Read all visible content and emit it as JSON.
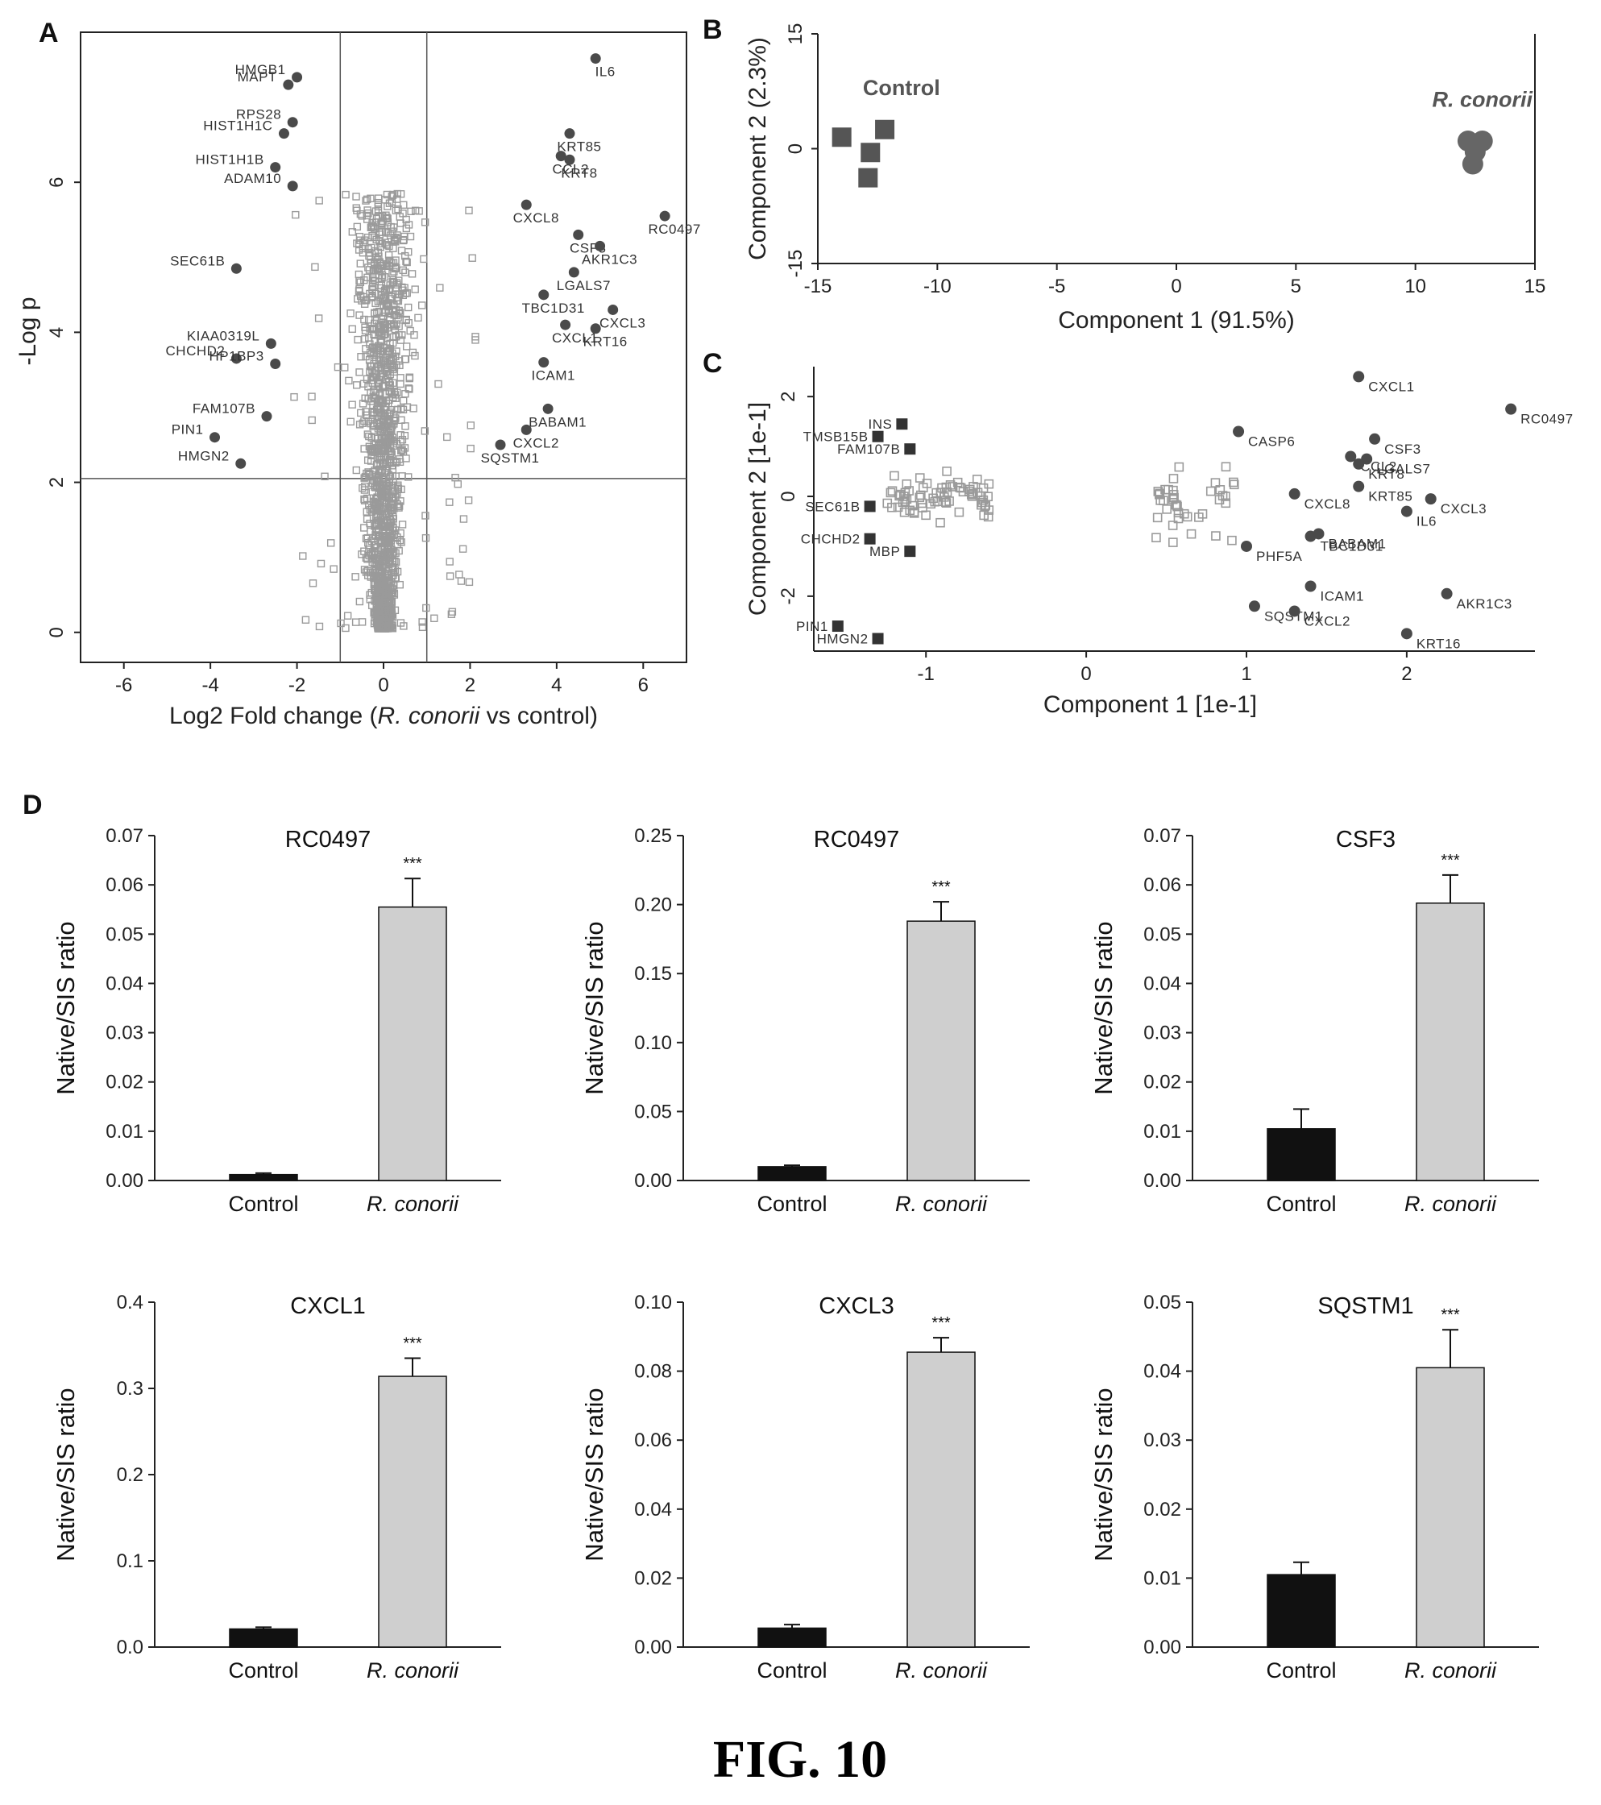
{
  "figure_caption": "FIG. 10",
  "colors": {
    "sig_point": "#4a4a4a",
    "nonsig_point": "#9a9a9a",
    "control_bar": "#111111",
    "treated_bar": "#cfcfcf",
    "treated_cluster": "#666666",
    "control_cluster": "#555555"
  },
  "chart_data": [
    {
      "panel": "A",
      "type": "scatter",
      "xlabel_prefix": "Log2 Fold change (",
      "xlabel_italic": "R. conorii",
      "xlabel_suffix": " vs control)",
      "ylabel": "-Log p",
      "xlim": [
        -7,
        7
      ],
      "ylim": [
        -0.4,
        8
      ],
      "xticks": [
        -6,
        -4,
        -2,
        0,
        2,
        4,
        6
      ],
      "yticks": [
        0,
        2,
        4,
        6
      ],
      "threshold_x": [
        -1,
        1
      ],
      "threshold_y": 2.05,
      "labeled_points": [
        {
          "gene": "HMGB1",
          "x": -2.0,
          "y": 7.4
        },
        {
          "gene": "MAPT",
          "x": -2.2,
          "y": 7.3
        },
        {
          "gene": "RPS28",
          "x": -2.1,
          "y": 6.8
        },
        {
          "gene": "HIST1H1C",
          "x": -2.3,
          "y": 6.65
        },
        {
          "gene": "HIST1H1B",
          "x": -2.5,
          "y": 6.2
        },
        {
          "gene": "ADAM10",
          "x": -2.1,
          "y": 5.95
        },
        {
          "gene": "SEC61B",
          "x": -3.4,
          "y": 4.85
        },
        {
          "gene": "KIAA0319L",
          "x": -2.6,
          "y": 3.85
        },
        {
          "gene": "CHCHD2",
          "x": -3.4,
          "y": 3.65
        },
        {
          "gene": "HP1BP3",
          "x": -2.5,
          "y": 3.58
        },
        {
          "gene": "FAM107B",
          "x": -2.7,
          "y": 2.88
        },
        {
          "gene": "PIN1",
          "x": -3.9,
          "y": 2.6
        },
        {
          "gene": "HMGN2",
          "x": -3.3,
          "y": 2.25
        },
        {
          "gene": "IL6",
          "x": 4.9,
          "y": 7.65
        },
        {
          "gene": "KRT85",
          "x": 4.3,
          "y": 6.65
        },
        {
          "gene": "CCL2",
          "x": 4.1,
          "y": 6.35
        },
        {
          "gene": "KRT8",
          "x": 4.3,
          "y": 6.3
        },
        {
          "gene": "CXCL8",
          "x": 3.3,
          "y": 5.7
        },
        {
          "gene": "RC0497",
          "x": 6.5,
          "y": 5.55
        },
        {
          "gene": "CSF3",
          "x": 4.5,
          "y": 5.3
        },
        {
          "gene": "AKR1C3",
          "x": 5.0,
          "y": 5.15
        },
        {
          "gene": "LGALS7",
          "x": 4.4,
          "y": 4.8
        },
        {
          "gene": "TBC1D31",
          "x": 3.7,
          "y": 4.5
        },
        {
          "gene": "CXCL3",
          "x": 5.3,
          "y": 4.3
        },
        {
          "gene": "CXCL1",
          "x": 4.2,
          "y": 4.1
        },
        {
          "gene": "KRT16",
          "x": 4.9,
          "y": 4.05
        },
        {
          "gene": "ICAM1",
          "x": 3.7,
          "y": 3.6
        },
        {
          "gene": "BABAM1",
          "x": 3.8,
          "y": 2.98
        },
        {
          "gene": "CXCL2",
          "x": 3.3,
          "y": 2.7
        },
        {
          "gene": "SQSTM1",
          "x": 2.7,
          "y": 2.5
        }
      ]
    },
    {
      "panel": "B",
      "type": "scatter",
      "xlabel": "Component 1 (91.5%)",
      "ylabel": "Component 2 (2.3%)",
      "xlim": [
        -15,
        15
      ],
      "ylim": [
        -15,
        15
      ],
      "xticks": [
        -15,
        -10,
        -5,
        0,
        5,
        10,
        15
      ],
      "yticks": [
        -15,
        0,
        15
      ],
      "series": [
        {
          "name": "Control",
          "marker": "square",
          "points": [
            [
              -14,
              1.5
            ],
            [
              -12.2,
              2.5
            ],
            [
              -12.8,
              -0.5
            ],
            [
              -12.9,
              -3.8
            ]
          ]
        },
        {
          "name": "R. conorii",
          "marker": "circle",
          "points": [
            [
              12.2,
              1.0
            ],
            [
              12.8,
              1.0
            ],
            [
              12.5,
              -0.4
            ],
            [
              12.4,
              -2.0
            ]
          ]
        }
      ]
    },
    {
      "panel": "C",
      "type": "scatter",
      "xlabel": "Component 1 [1e-1]",
      "ylabel": "Component 2 [1e-1]",
      "xlim": [
        -1.7,
        2.8
      ],
      "ylim": [
        -3.1,
        2.6
      ],
      "xticks": [
        -1,
        0,
        1,
        2
      ],
      "yticks": [
        -2,
        0,
        2
      ],
      "labeled_points": [
        {
          "gene": "TMSB15B",
          "x": -1.3,
          "y": 1.2,
          "marker": "square"
        },
        {
          "gene": "INS",
          "x": -1.15,
          "y": 1.45,
          "marker": "square"
        },
        {
          "gene": "FAM107B",
          "x": -1.1,
          "y": 0.95,
          "marker": "square"
        },
        {
          "gene": "SEC61B",
          "x": -1.35,
          "y": -0.2,
          "marker": "square"
        },
        {
          "gene": "CHCHD2",
          "x": -1.35,
          "y": -0.85,
          "marker": "square"
        },
        {
          "gene": "MBP",
          "x": -1.1,
          "y": -1.1,
          "marker": "square"
        },
        {
          "gene": "PIN1",
          "x": -1.55,
          "y": -2.6,
          "marker": "square"
        },
        {
          "gene": "HMGN2",
          "x": -1.3,
          "y": -2.85,
          "marker": "square"
        },
        {
          "gene": "CXCL1",
          "x": 1.7,
          "y": 2.4,
          "marker": "circle"
        },
        {
          "gene": "RC0497",
          "x": 2.65,
          "y": 1.75,
          "marker": "circle"
        },
        {
          "gene": "CASP6",
          "x": 0.95,
          "y": 1.3,
          "marker": "circle"
        },
        {
          "gene": "CSF3",
          "x": 1.8,
          "y": 1.15,
          "marker": "circle"
        },
        {
          "gene": "CCL2",
          "x": 1.65,
          "y": 0.8,
          "marker": "circle"
        },
        {
          "gene": "LGALS7",
          "x": 1.75,
          "y": 0.75,
          "marker": "circle"
        },
        {
          "gene": "KRT8",
          "x": 1.7,
          "y": 0.65,
          "marker": "circle"
        },
        {
          "gene": "KRT85",
          "x": 1.7,
          "y": 0.2,
          "marker": "circle"
        },
        {
          "gene": "CXCL8",
          "x": 1.3,
          "y": 0.05,
          "marker": "circle"
        },
        {
          "gene": "CXCL3",
          "x": 2.15,
          "y": -0.05,
          "marker": "circle"
        },
        {
          "gene": "IL6",
          "x": 2.0,
          "y": -0.3,
          "marker": "circle"
        },
        {
          "gene": "BABAM1",
          "x": 1.45,
          "y": -0.75,
          "marker": "circle"
        },
        {
          "gene": "TBC1D31",
          "x": 1.4,
          "y": -0.8,
          "marker": "circle"
        },
        {
          "gene": "PHF5A",
          "x": 1.0,
          "y": -1.0,
          "marker": "circle"
        },
        {
          "gene": "ICAM1",
          "x": 1.4,
          "y": -1.8,
          "marker": "circle"
        },
        {
          "gene": "AKR1C3",
          "x": 2.25,
          "y": -1.95,
          "marker": "circle"
        },
        {
          "gene": "SQSTM1",
          "x": 1.05,
          "y": -2.2,
          "marker": "circle"
        },
        {
          "gene": "CXCL2",
          "x": 1.3,
          "y": -2.3,
          "marker": "circle"
        },
        {
          "gene": "KRT16",
          "x": 2.0,
          "y": -2.75,
          "marker": "circle"
        }
      ]
    },
    {
      "panel": "D",
      "type": "bar",
      "title": "RC0497",
      "ylabel": "Native/SIS ratio",
      "categories": [
        "Control",
        "R. conorii"
      ],
      "values": [
        0.0012,
        0.0555
      ],
      "errors": [
        0.0003,
        0.0058
      ],
      "ylim": [
        0,
        0.07
      ],
      "yticks": [
        "0.00",
        "0.01",
        "0.02",
        "0.03",
        "0.04",
        "0.05",
        "0.06",
        "0.07"
      ],
      "significance": "***"
    },
    {
      "panel": "D",
      "type": "bar",
      "title": "RC0497",
      "ylabel": "Native/SIS ratio",
      "categories": [
        "Control",
        "R. conorii"
      ],
      "values": [
        0.01,
        0.188
      ],
      "errors": [
        0.001,
        0.014
      ],
      "ylim": [
        0,
        0.25
      ],
      "yticks": [
        "0.00",
        "0.05",
        "0.10",
        "0.15",
        "0.20",
        "0.25"
      ],
      "significance": "***"
    },
    {
      "panel": "D",
      "type": "bar",
      "title": "CSF3",
      "ylabel": "Native/SIS ratio",
      "categories": [
        "Control",
        "R. conorii"
      ],
      "values": [
        0.0105,
        0.0563
      ],
      "errors": [
        0.004,
        0.0057
      ],
      "ylim": [
        0,
        0.07
      ],
      "yticks": [
        "0.00",
        "0.01",
        "0.02",
        "0.03",
        "0.04",
        "0.05",
        "0.06",
        "0.07"
      ],
      "significance": "***"
    },
    {
      "panel": "D",
      "type": "bar",
      "title": "CXCL1",
      "ylabel": "Native/SIS ratio",
      "categories": [
        "Control",
        "R. conorii"
      ],
      "values": [
        0.021,
        0.314
      ],
      "errors": [
        0.002,
        0.021
      ],
      "ylim": [
        0,
        0.4
      ],
      "yticks": [
        "0.0",
        "0.1",
        "0.2",
        "0.3",
        "0.4"
      ],
      "significance": "***"
    },
    {
      "panel": "D",
      "type": "bar",
      "title": "CXCL3",
      "ylabel": "Native/SIS ratio",
      "categories": [
        "Control",
        "R. conorii"
      ],
      "values": [
        0.0055,
        0.0855
      ],
      "errors": [
        0.001,
        0.0042
      ],
      "ylim": [
        0,
        0.1
      ],
      "yticks": [
        "0.00",
        "0.02",
        "0.04",
        "0.06",
        "0.08",
        "0.10"
      ],
      "significance": "***"
    },
    {
      "panel": "D",
      "type": "bar",
      "title": "SQSTM1",
      "ylabel": "Native/SIS ratio",
      "categories": [
        "Control",
        "R. conorii"
      ],
      "values": [
        0.0105,
        0.0405
      ],
      "errors": [
        0.0018,
        0.0055
      ],
      "ylim": [
        0,
        0.05
      ],
      "yticks": [
        "0.00",
        "0.01",
        "0.02",
        "0.03",
        "0.04",
        "0.05"
      ],
      "significance": "***"
    }
  ]
}
